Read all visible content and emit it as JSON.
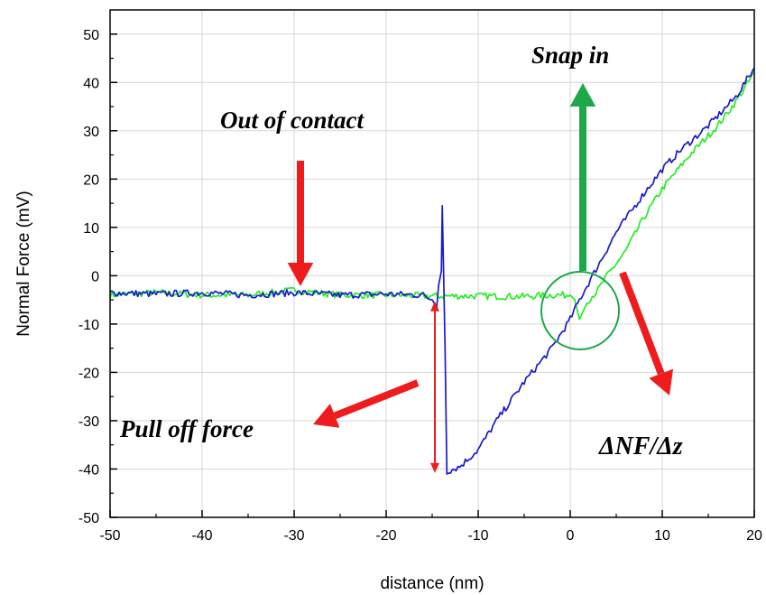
{
  "chart_data": {
    "type": "line",
    "title": "",
    "xlabel": "distance (nm)",
    "ylabel": "Normal Force (mV)",
    "xlim": [
      -50,
      20
    ],
    "ylim": [
      -50,
      55
    ],
    "x_ticks": [
      -50,
      -40,
      -30,
      -20,
      -10,
      0,
      10,
      20
    ],
    "y_ticks": [
      -50,
      -40,
      -30,
      -20,
      -10,
      0,
      10,
      20,
      30,
      40,
      50
    ],
    "grid": true,
    "legend": "none",
    "series": [
      {
        "color": "#1a1acc",
        "points": [
          [
            -50,
            -3.5
          ],
          [
            -45,
            -3.8
          ],
          [
            -40,
            -3.5
          ],
          [
            -35,
            -4
          ],
          [
            -30,
            -3.5
          ],
          [
            -25,
            -4
          ],
          [
            -20,
            -3.8
          ],
          [
            -16,
            -4
          ],
          [
            -15,
            -5
          ],
          [
            -14.5,
            -6.5
          ],
          [
            -14.3,
            -2
          ],
          [
            -14,
            1
          ],
          [
            -13.9,
            14.5
          ],
          [
            -13.8,
            5
          ],
          [
            -13.6,
            -15
          ],
          [
            -13.4,
            -40.5
          ],
          [
            -12,
            -39.5
          ],
          [
            -10,
            -36
          ],
          [
            -8,
            -30
          ],
          [
            -5,
            -22
          ],
          [
            -2,
            -15
          ],
          [
            0,
            -9
          ],
          [
            1,
            -5
          ],
          [
            3,
            2
          ],
          [
            5,
            9
          ],
          [
            8,
            17
          ],
          [
            10,
            22
          ],
          [
            12,
            26
          ],
          [
            15,
            31
          ],
          [
            18,
            37
          ],
          [
            20,
            43
          ]
        ]
      },
      {
        "color": "#22ee22",
        "points": [
          [
            -50,
            -4
          ],
          [
            -45,
            -3.5
          ],
          [
            -40,
            -4
          ],
          [
            -35,
            -4
          ],
          [
            -30,
            -3
          ],
          [
            -25,
            -4
          ],
          [
            -20,
            -4
          ],
          [
            -15,
            -4.2
          ],
          [
            -10,
            -4.2
          ],
          [
            -5,
            -4.3
          ],
          [
            -2,
            -4
          ],
          [
            0,
            -4
          ],
          [
            0.5,
            -5
          ],
          [
            1,
            -9
          ],
          [
            1.5,
            -7
          ],
          [
            2,
            -5
          ],
          [
            3,
            -3
          ],
          [
            4,
            0
          ],
          [
            6,
            5
          ],
          [
            8,
            12
          ],
          [
            10,
            18
          ],
          [
            13,
            25
          ],
          [
            16,
            31
          ],
          [
            18,
            36
          ],
          [
            20,
            42
          ]
        ]
      }
    ],
    "annotations": {
      "out_of_contact": "Out of contact",
      "snap_in": "Snap in",
      "pull_off_force": "Pull off force",
      "slope": "ΔNF/Δz"
    }
  },
  "colors": {
    "red_arrow": "#ee1c1c",
    "green_arrow": "#1ea84a",
    "circle": "#1ea84a",
    "grid": "#d6d6d6"
  }
}
